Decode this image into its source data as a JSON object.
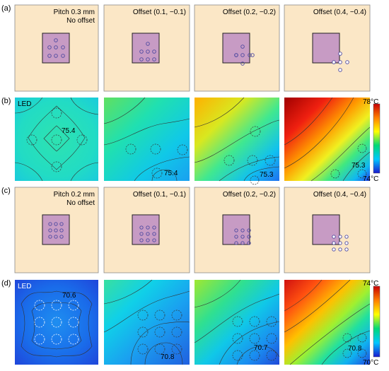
{
  "labels": {
    "a": "(a)",
    "b": "(b)",
    "c": "(c)",
    "d": "(d)"
  },
  "row_a": {
    "captions": [
      {
        "line1": "Pitch 0.3 mm",
        "line2": "No offset"
      },
      {
        "line1": "Offset (0.1, −0.1)",
        "line2": ""
      },
      {
        "line1": "Offset (0.2, −0.2)",
        "line2": ""
      },
      {
        "line1": "Offset (0.4, −0.4)",
        "line2": ""
      }
    ]
  },
  "row_c": {
    "captions": [
      {
        "line1": "Pitch 0.2 mm",
        "line2": "No offset"
      },
      {
        "line1": "Offset (0.1, −0.1)",
        "line2": ""
      },
      {
        "line1": "Offset (0.2, −0.2)",
        "line2": ""
      },
      {
        "line1": "Offset (0.4, −0.4)",
        "line2": ""
      }
    ]
  },
  "row_b": {
    "led": "LED",
    "values": [
      "75.4",
      "75.4",
      "75.3",
      "75.3"
    ],
    "colorbar": {
      "max": "78°C",
      "min": "74°C"
    }
  },
  "row_d": {
    "led": "LED",
    "values": [
      "70.6",
      "70.8",
      "70.7",
      "70.8"
    ],
    "colorbar": {
      "max": "74°C",
      "min": "70°C"
    }
  },
  "colors": {
    "panel_bg": "#fbe7c6",
    "panel_border": "#777777",
    "chip_fill": "#c79bc4",
    "dot_stroke": "#5a55a6"
  }
}
